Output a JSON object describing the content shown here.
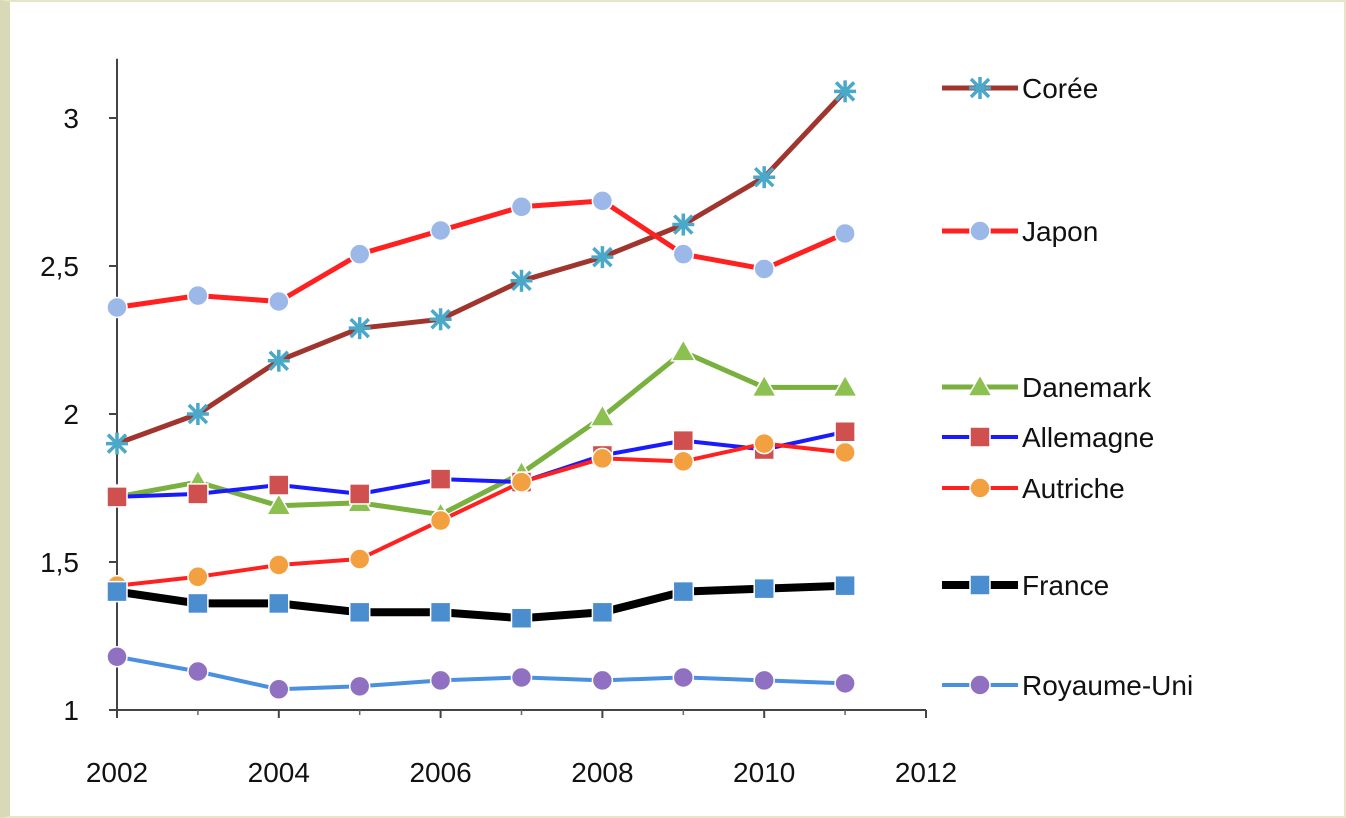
{
  "chart_data": {
    "type": "line",
    "title": "",
    "xlabel": "",
    "ylabel": "",
    "xlim": [
      2002,
      2012
    ],
    "ylim": [
      1,
      3.2
    ],
    "x_ticks": [
      2002,
      2004,
      2006,
      2008,
      2010,
      2012
    ],
    "x_tick_labels": [
      "2002",
      "2004",
      "2006",
      "2008",
      "2010",
      "2012"
    ],
    "y_ticks": [
      1,
      1.5,
      2,
      2.5,
      3
    ],
    "y_tick_labels": [
      "1",
      "1,5",
      "2",
      "2,5",
      "3"
    ],
    "grid": false,
    "legend_position": "right",
    "x": [
      2002,
      2003,
      2004,
      2005,
      2006,
      2007,
      2008,
      2009,
      2010,
      2011
    ],
    "series": [
      {
        "name": "Corée",
        "color": "#a0352e",
        "marker": "star",
        "marker_color": "#4aa8c8",
        "line_width": 5,
        "values": [
          1.9,
          2.0,
          2.18,
          2.29,
          2.32,
          2.45,
          2.53,
          2.64,
          2.8,
          3.09
        ]
      },
      {
        "name": "Japon",
        "color": "#ff2020",
        "marker": "circle",
        "marker_color": "#9bb8e8",
        "line_width": 5,
        "values": [
          2.36,
          2.4,
          2.38,
          2.54,
          2.62,
          2.7,
          2.72,
          2.54,
          2.49,
          2.61
        ]
      },
      {
        "name": "Danemark",
        "color": "#79b03e",
        "marker": "triangle",
        "marker_color": "#8cc050",
        "line_width": 5,
        "values": [
          1.72,
          1.77,
          1.69,
          1.7,
          1.66,
          1.8,
          1.99,
          2.21,
          2.09,
          2.09
        ]
      },
      {
        "name": "Allemagne",
        "color": "#1a1aff",
        "marker": "square",
        "marker_color": "#d05050",
        "line_width": 4,
        "values": [
          1.72,
          1.73,
          1.76,
          1.73,
          1.78,
          1.77,
          1.86,
          1.91,
          1.88,
          1.94
        ]
      },
      {
        "name": "Autriche",
        "color": "#ff2020",
        "marker": "circle",
        "marker_color": "#f2a040",
        "line_width": 4,
        "values": [
          1.42,
          1.45,
          1.49,
          1.51,
          1.64,
          1.77,
          1.85,
          1.84,
          1.9,
          1.87
        ]
      },
      {
        "name": "France",
        "color": "#000000",
        "marker": "square",
        "marker_color": "#4a8ed0",
        "line_width": 8,
        "values": [
          1.4,
          1.36,
          1.36,
          1.33,
          1.33,
          1.31,
          1.33,
          1.4,
          1.41,
          1.42
        ]
      },
      {
        "name": "Royaume-Uni",
        "color": "#4a90e0",
        "marker": "circle",
        "marker_color": "#9070c0",
        "line_width": 4,
        "values": [
          1.18,
          1.13,
          1.07,
          1.08,
          1.1,
          1.11,
          1.1,
          1.11,
          1.1,
          1.09
        ]
      }
    ]
  }
}
